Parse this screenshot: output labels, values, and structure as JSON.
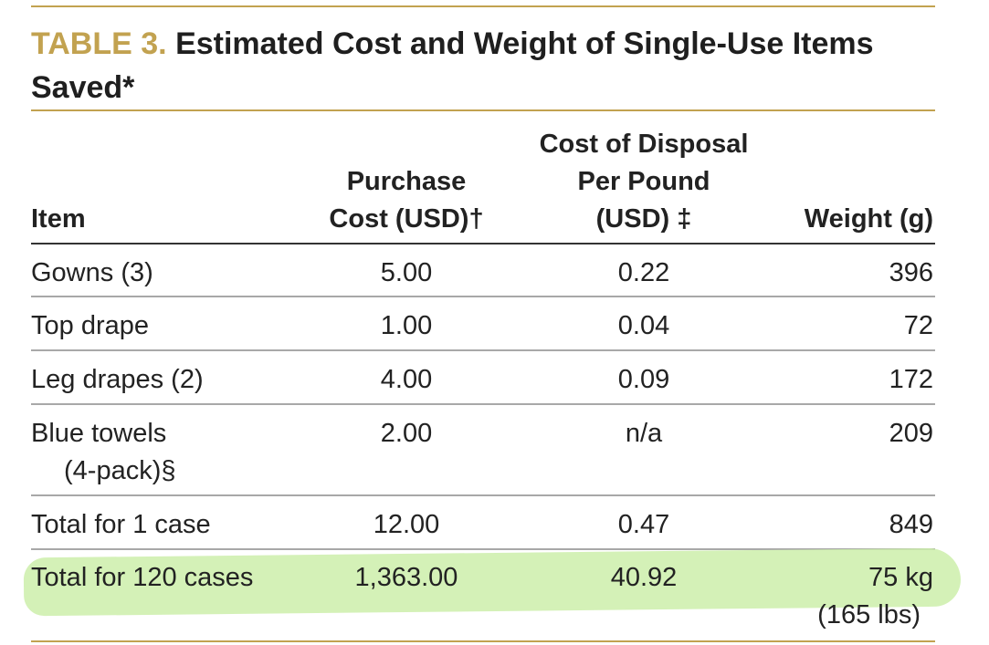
{
  "title": {
    "label": "TABLE 3.",
    "text": "Estimated Cost and Weight of Single-Use Items Saved*"
  },
  "colors": {
    "accent": "#c2a250",
    "highlight": "#cdeeaa"
  },
  "headers": {
    "item": "Item",
    "purchase_line1": "Purchase",
    "purchase_line2": "Cost (USD)†",
    "disposal_line1": "Cost of Disposal",
    "disposal_line2": "Per Pound",
    "disposal_line3": "(USD) ‡",
    "weight": "Weight (g)"
  },
  "rows": [
    {
      "item": "Gowns (3)",
      "purchase": "5.00",
      "disposal": "0.22",
      "weight": "396"
    },
    {
      "item": "Top drape",
      "purchase": "1.00",
      "disposal": "0.04",
      "weight": "72"
    },
    {
      "item": "Leg drapes (2)",
      "purchase": "4.00",
      "disposal": "0.09",
      "weight": "172"
    },
    {
      "item": "Blue towels",
      "item_line2": "(4-pack)§",
      "purchase": "2.00",
      "disposal": "n/a",
      "weight": "209"
    },
    {
      "item": "Total for 1 case",
      "purchase": "12.00",
      "disposal": "0.47",
      "weight": "849"
    },
    {
      "item": "Total for 120 cases",
      "purchase": "1,363.00",
      "disposal": "40.92",
      "weight": "75 kg",
      "weight_line2": "(165 lbs)"
    }
  ]
}
